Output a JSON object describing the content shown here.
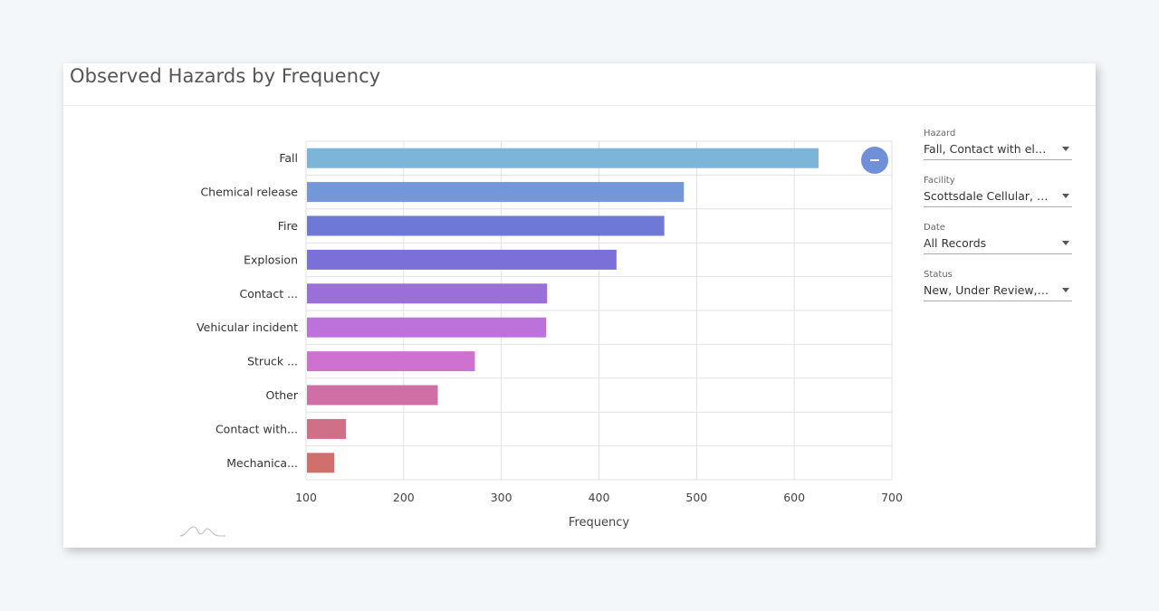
{
  "card": {
    "title": "Observed Hazards by Frequency"
  },
  "filters": [
    {
      "label": "Hazard",
      "value": "Fall, Contact with electri..."
    },
    {
      "label": "Facility",
      "value": "Scottsdale Cellular, Tem..."
    },
    {
      "label": "Date",
      "value": "All Records"
    },
    {
      "label": "Status",
      "value": "New, Under Review, Clos..."
    }
  ],
  "chart_data": {
    "type": "bar",
    "orientation": "horizontal",
    "title": "Observed Hazards by Frequency",
    "xlabel": "Frequency",
    "ylabel": "",
    "xlim": [
      100,
      700
    ],
    "xticks": [
      100,
      200,
      300,
      400,
      500,
      600,
      700
    ],
    "grid": true,
    "categories": [
      "Fall",
      "Chemical release",
      "Fire",
      "Explosion",
      "Contact ...",
      "Vehicular incident",
      "Struck ...",
      "Other",
      "Contact with...",
      "Mechanica..."
    ],
    "values": [
      624,
      486,
      466,
      417,
      346,
      345,
      272,
      234,
      140,
      128
    ],
    "colors": [
      "#7db5d9",
      "#7397d9",
      "#6e79d7",
      "#7b6fd8",
      "#9b6fd8",
      "#bd72db",
      "#cf72cf",
      "#cf6fa6",
      "#d07088",
      "#d06f6b"
    ]
  }
}
